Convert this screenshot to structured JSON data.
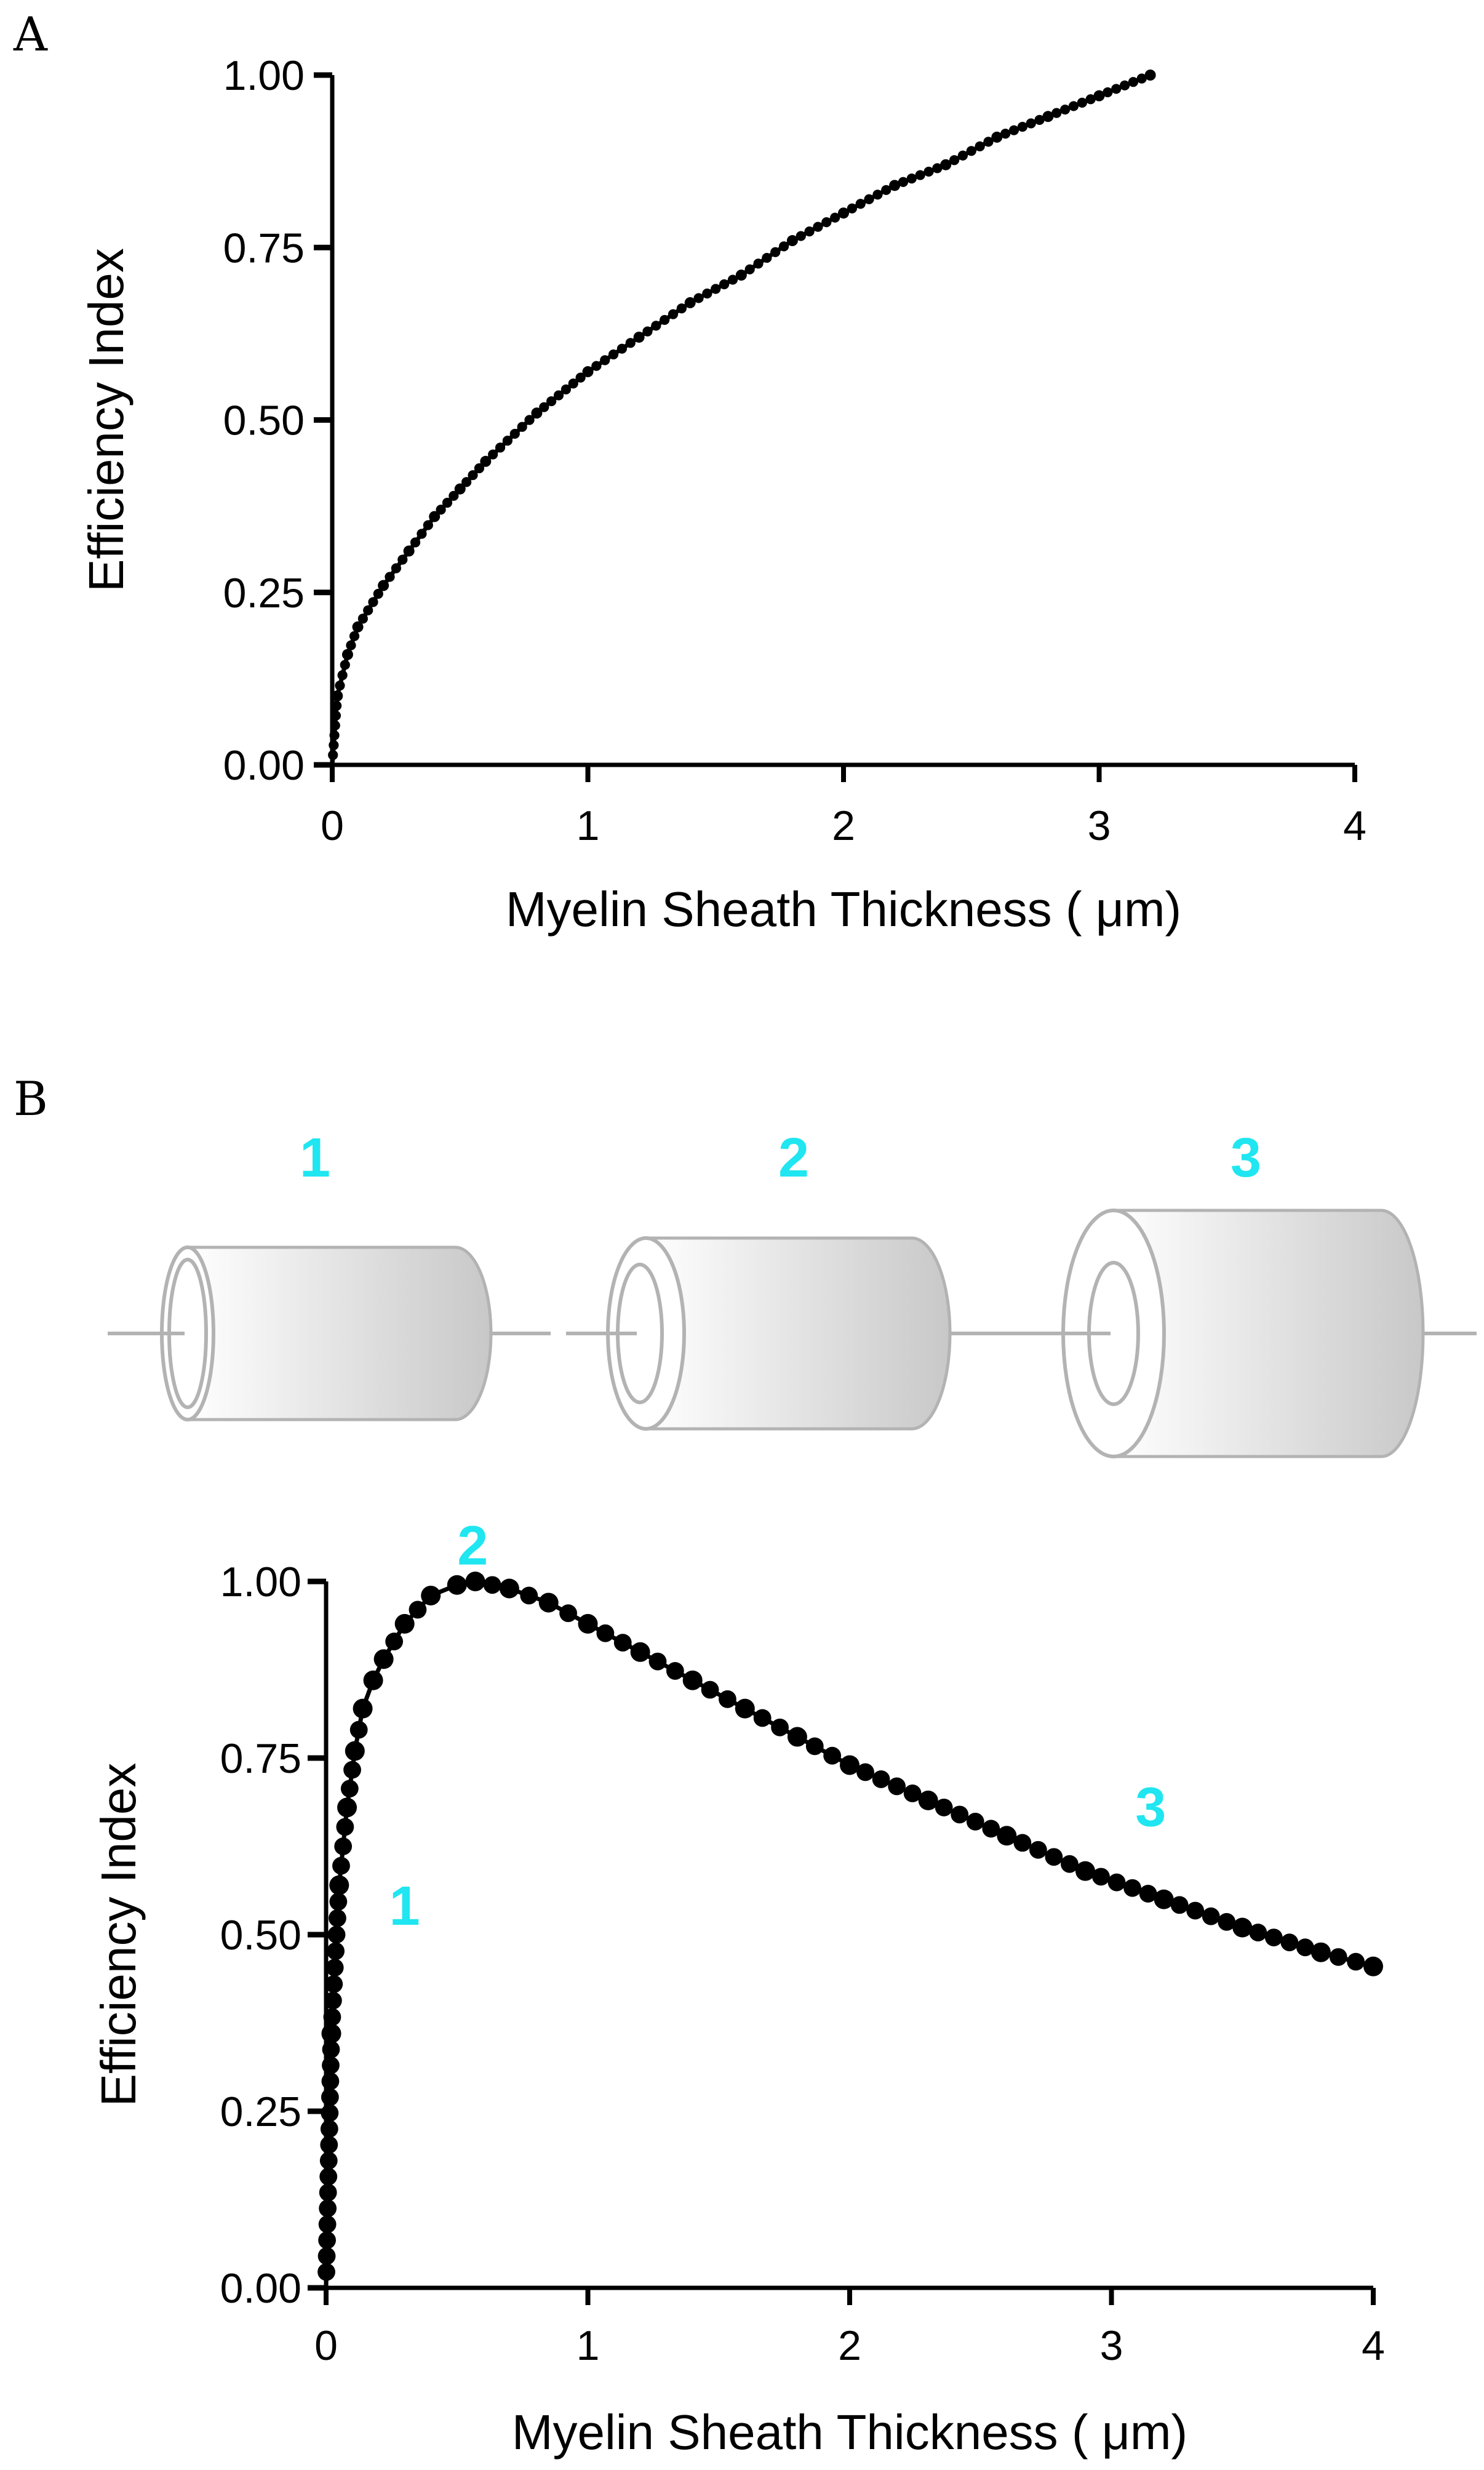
{
  "colors": {
    "axis": "#000000",
    "marker": "#000000",
    "annotation": "#1fe6f0",
    "diagram_stroke": "#b3b3b3",
    "cylinder_light": "#ffffff",
    "cylinder_dark": "#c8c8c8"
  },
  "panel_a": {
    "letter": "A"
  },
  "panel_b": {
    "letter": "B",
    "diagram_labels": [
      "1",
      "2",
      "3"
    ]
  },
  "chart_data": [
    {
      "type": "scatter",
      "panel": "A",
      "xlabel": "Myelin Sheath Thickness ( μm)",
      "ylabel": "Efficiency Index",
      "xlim": [
        0,
        4
      ],
      "ylim": [
        0,
        1
      ],
      "x_ticks": [
        "0",
        "1",
        "2",
        "3",
        "4"
      ],
      "y_ticks": [
        "0.00",
        "0.25",
        "0.50",
        "0.75",
        "1.00"
      ],
      "grid": false,
      "series": [
        {
          "marker": "filled-circle",
          "line": true,
          "x": [
            0.0,
            0.02,
            0.06,
            0.1,
            0.2,
            0.3,
            0.4,
            0.5,
            0.6,
            0.8,
            1.0,
            1.2,
            1.4,
            1.6,
            1.8,
            2.0,
            2.2,
            2.4,
            2.6,
            2.8,
            3.0,
            3.2
          ],
          "y": [
            0.0,
            0.1,
            0.16,
            0.2,
            0.26,
            0.31,
            0.36,
            0.4,
            0.44,
            0.51,
            0.57,
            0.62,
            0.67,
            0.71,
            0.76,
            0.8,
            0.84,
            0.87,
            0.91,
            0.94,
            0.97,
            1.0
          ]
        }
      ]
    },
    {
      "type": "scatter",
      "panel": "B",
      "xlabel": "Myelin Sheath Thickness ( μm)",
      "ylabel": "Efficiency Index",
      "xlim": [
        0,
        4
      ],
      "ylim": [
        0,
        1
      ],
      "x_ticks": [
        "0",
        "1",
        "2",
        "3",
        "4"
      ],
      "y_ticks": [
        "0.00",
        "0.25",
        "0.50",
        "0.75",
        "1.00"
      ],
      "grid": false,
      "annotations": [
        {
          "text": "1",
          "x": 0.3,
          "y": 0.54
        },
        {
          "text": "2",
          "x": 0.56,
          "y": 1.05
        },
        {
          "text": "3",
          "x": 3.15,
          "y": 0.68
        }
      ],
      "series": [
        {
          "marker": "filled-circle",
          "line": true,
          "x": [
            0.0,
            0.02,
            0.05,
            0.08,
            0.11,
            0.14,
            0.18,
            0.22,
            0.3,
            0.4,
            0.5,
            0.57,
            0.7,
            0.85,
            1.0,
            1.2,
            1.4,
            1.6,
            1.8,
            2.0,
            2.3,
            2.6,
            2.9,
            3.2,
            3.5,
            3.8,
            4.0
          ],
          "y": [
            0.0,
            0.36,
            0.57,
            0.68,
            0.76,
            0.82,
            0.86,
            0.89,
            0.94,
            0.98,
            0.995,
            1.0,
            0.99,
            0.97,
            0.94,
            0.9,
            0.86,
            0.82,
            0.78,
            0.74,
            0.69,
            0.64,
            0.59,
            0.55,
            0.51,
            0.475,
            0.455
          ]
        }
      ]
    }
  ]
}
